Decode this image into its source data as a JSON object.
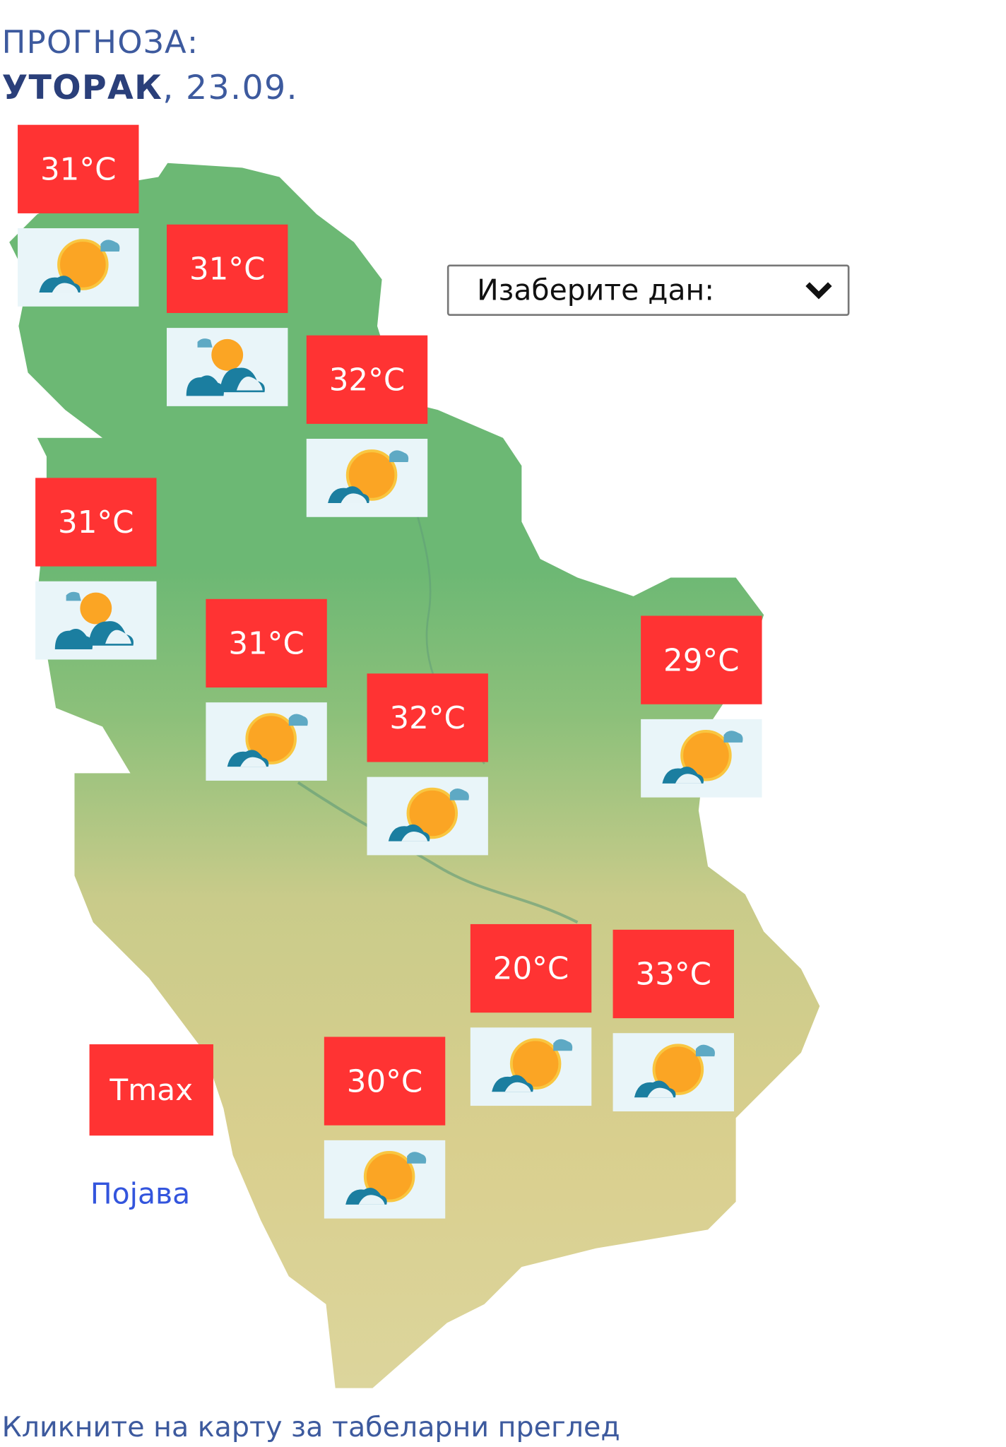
{
  "header": {
    "line1": "ПРОГНОЗА:",
    "day": "УТОРАК",
    "date": ", 23.09."
  },
  "day_select": {
    "label": "Изаберите дан:",
    "icon": "chevron-down-icon"
  },
  "stations": [
    {
      "temp": "31°C",
      "icon": "sun-behind-cloud"
    },
    {
      "temp": "31°C",
      "icon": "clouds-with-sun"
    },
    {
      "temp": "32°C",
      "icon": "sun-behind-cloud"
    },
    {
      "temp": "31°C",
      "icon": "clouds-with-sun"
    },
    {
      "temp": "31°C",
      "icon": "sun-behind-cloud"
    },
    {
      "temp": "32°C",
      "icon": "sun-behind-cloud"
    },
    {
      "temp": "29°C",
      "icon": "sun-behind-cloud"
    },
    {
      "temp": "20°C",
      "icon": "sun-behind-cloud"
    },
    {
      "temp": "33°C",
      "icon": "sun-behind-cloud"
    },
    {
      "temp": "30°C",
      "icon": "sun-behind-cloud"
    }
  ],
  "legend": {
    "tmax": "Tmax",
    "pojava": "Појава"
  },
  "footer": "Кликните на карту за табеларни преглед",
  "colors": {
    "temp_box": "#ff3333",
    "icon_box": "#e9f5f9",
    "lowland": "#6cb874",
    "highland": "#d9cf8e",
    "text": "#3d5a9e"
  }
}
